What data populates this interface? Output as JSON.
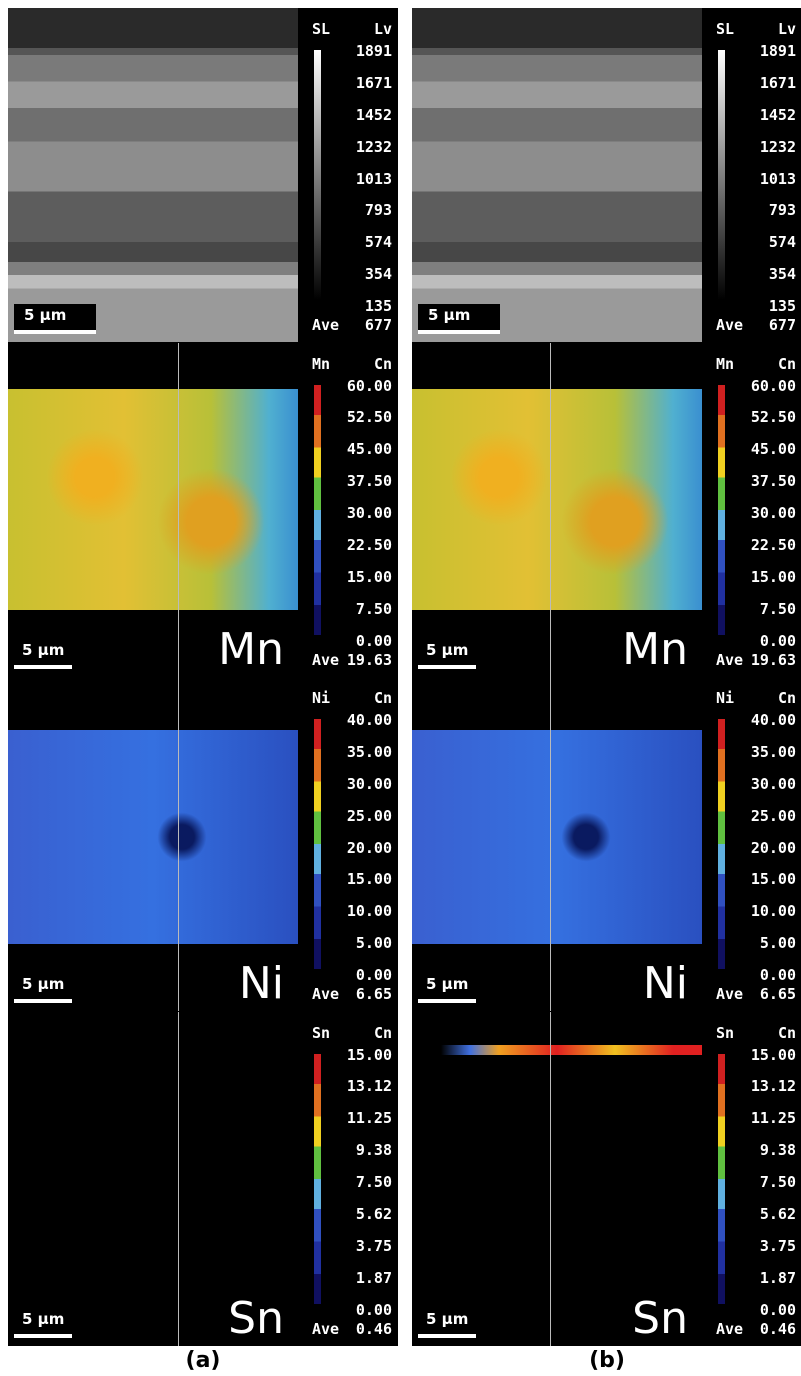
{
  "columns": [
    {
      "label": "(a)",
      "panels": [
        {
          "header": [
            "SL",
            "Lv"
          ],
          "levels": [
            "1891",
            "1671",
            "1452",
            "1232",
            "1013",
            "793",
            "574",
            "354",
            "135"
          ],
          "ave_label": "Ave",
          "ave": "677",
          "scale": "5 μm"
        },
        {
          "header": [
            "Mn",
            "Cn"
          ],
          "levels": [
            "60.00",
            "52.50",
            "45.00",
            "37.50",
            "30.00",
            "22.50",
            "15.00",
            "7.50",
            "0.00"
          ],
          "ave_label": "Ave",
          "ave": "19.63",
          "scale": "5 μm",
          "element": "Mn"
        },
        {
          "header": [
            "Ni",
            "Cn"
          ],
          "levels": [
            "40.00",
            "35.00",
            "30.00",
            "25.00",
            "20.00",
            "15.00",
            "10.00",
            "5.00",
            "0.00"
          ],
          "ave_label": "Ave",
          "ave": "6.65",
          "scale": "5 μm",
          "element": "Ni"
        },
        {
          "header": [
            "Sn",
            "Cn"
          ],
          "levels": [
            "15.00",
            "13.12",
            "11.25",
            "9.38",
            "7.50",
            "5.62",
            "3.75",
            "1.87",
            "0.00"
          ],
          "ave_label": "Ave",
          "ave": "0.46",
          "scale": "5 μm",
          "element": "Sn"
        }
      ]
    },
    {
      "label": "(b)",
      "panels": [
        {
          "header": [
            "SL",
            "Lv"
          ],
          "levels": [
            "1891",
            "1671",
            "1452",
            "1232",
            "1013",
            "793",
            "574",
            "354",
            "135"
          ],
          "ave_label": "Ave",
          "ave": "677",
          "scale": "5 μm"
        },
        {
          "header": [
            "Mn",
            "Cn"
          ],
          "levels": [
            "60.00",
            "52.50",
            "45.00",
            "37.50",
            "30.00",
            "22.50",
            "15.00",
            "7.50",
            "0.00"
          ],
          "ave_label": "Ave",
          "ave": "19.63",
          "scale": "5 μm",
          "element": "Mn"
        },
        {
          "header": [
            "Ni",
            "Cn"
          ],
          "levels": [
            "40.00",
            "35.00",
            "30.00",
            "25.00",
            "20.00",
            "15.00",
            "10.00",
            "5.00",
            "0.00"
          ],
          "ave_label": "Ave",
          "ave": "6.65",
          "scale": "5 μm",
          "element": "Ni"
        },
        {
          "header": [
            "Sn",
            "Cn"
          ],
          "levels": [
            "15.00",
            "13.12",
            "11.25",
            "9.38",
            "7.50",
            "5.62",
            "3.75",
            "1.87",
            "0.00"
          ],
          "ave_label": "Ave",
          "ave": "0.46",
          "scale": "5 μm",
          "element": "Sn"
        }
      ]
    }
  ]
}
